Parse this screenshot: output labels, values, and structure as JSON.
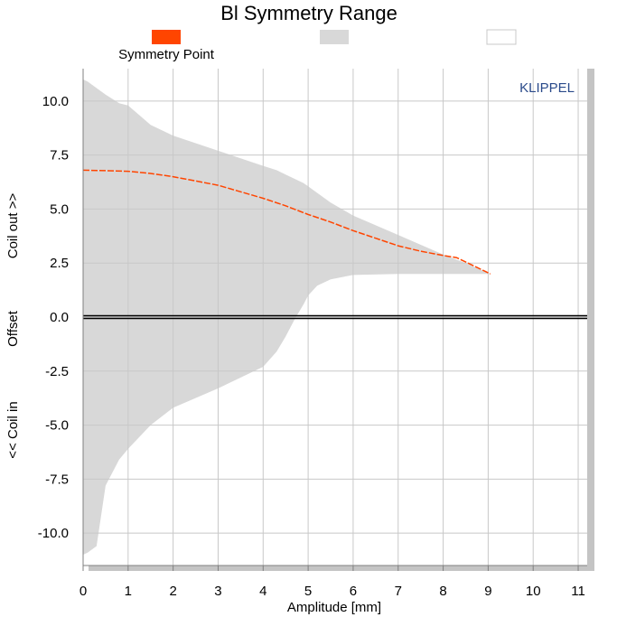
{
  "chart_data": {
    "type": "area",
    "title": "Bl Symmetry Range",
    "xlabel": "Amplitude [mm]",
    "ylabel_parts": [
      "Coil out >>",
      "Offset",
      "<< Coil in"
    ],
    "brand": "KLIPPEL",
    "xlim": [
      0,
      11.2
    ],
    "ylim": [
      -11.5,
      11.5
    ],
    "x_ticks": [
      0,
      1,
      2,
      3,
      4,
      5,
      6,
      7,
      8,
      9,
      10,
      11
    ],
    "y_ticks": [
      -10.0,
      -7.5,
      -5.0,
      -2.5,
      0.0,
      2.5,
      5.0,
      7.5,
      10.0
    ],
    "y_tick_labels": [
      "-10.0",
      "-7.5",
      "-5.0",
      "-2.5",
      "0.0",
      "2.5",
      "5.0",
      "7.5",
      "10.0"
    ],
    "grid": true,
    "legend": [
      {
        "label": "Symmetry Point",
        "color": "#ff4500"
      },
      {
        "label": "",
        "color": "#d8d8d8"
      },
      {
        "label": "",
        "color": "#ffffff"
      }
    ],
    "series": [
      {
        "name": "Symmetry Point",
        "color": "#ff4500",
        "x": [
          0.0,
          0.5,
          1.0,
          1.5,
          2.0,
          2.5,
          3.0,
          3.5,
          4.0,
          4.5,
          5.0,
          5.5,
          6.0,
          6.5,
          7.0,
          7.5,
          8.0,
          8.3,
          8.6,
          8.9,
          9.05
        ],
        "y": [
          6.8,
          6.78,
          6.75,
          6.65,
          6.5,
          6.3,
          6.1,
          5.8,
          5.5,
          5.15,
          4.75,
          4.4,
          4.0,
          3.65,
          3.3,
          3.05,
          2.85,
          2.75,
          2.45,
          2.15,
          2.0
        ]
      }
    ],
    "range_band": {
      "color": "#d8d8d8",
      "x": [
        0.0,
        0.1,
        0.3,
        0.5,
        0.8,
        1.0,
        1.5,
        2.0,
        3.0,
        4.0,
        4.3,
        4.5,
        4.7,
        4.9,
        5.0,
        5.2,
        5.5,
        6.0,
        7.0,
        8.0,
        8.5,
        9.05
      ],
      "upper": [
        11.0,
        10.9,
        10.6,
        10.3,
        9.9,
        9.8,
        8.9,
        8.4,
        7.7,
        7.0,
        6.8,
        6.6,
        6.4,
        6.2,
        6.05,
        5.75,
        5.3,
        4.7,
        3.8,
        2.9,
        2.5,
        2.0
      ],
      "lower": [
        -11.0,
        -10.9,
        -10.6,
        -7.8,
        -6.6,
        -6.1,
        -5.0,
        -4.2,
        -3.3,
        -2.3,
        -1.6,
        -0.9,
        -0.1,
        0.6,
        1.0,
        1.45,
        1.75,
        1.95,
        2.0,
        2.0,
        2.0,
        2.0
      ]
    }
  }
}
